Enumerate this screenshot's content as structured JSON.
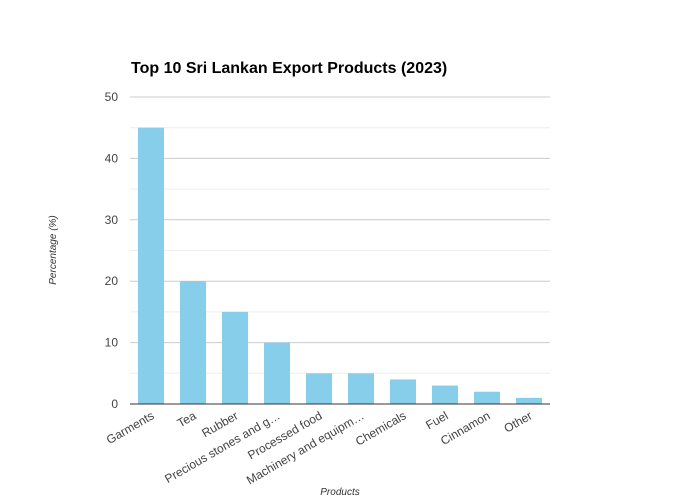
{
  "chart_data": {
    "type": "bar",
    "title": "Top 10 Sri Lankan Export Products (2023)",
    "xlabel": "Products",
    "ylabel": "Percentage (%)",
    "categories": [
      "Garments",
      "Tea",
      "Rubber",
      "Precious stones and g…",
      "Processed food",
      "Machinery and equipm…",
      "Chemicals",
      "Fuel",
      "Cinnamon",
      "Other"
    ],
    "values": [
      45,
      20,
      15,
      10,
      5,
      5,
      4,
      3,
      2,
      1
    ],
    "ylim": [
      0,
      50
    ],
    "yticks": [
      0,
      10,
      20,
      30,
      40,
      50
    ],
    "grid": true,
    "legend": "none",
    "colors": {
      "bar": "#87ceeb",
      "major_grid": "#cccccc",
      "minor_grid": "#eeeeee",
      "axis": "#333333"
    }
  }
}
